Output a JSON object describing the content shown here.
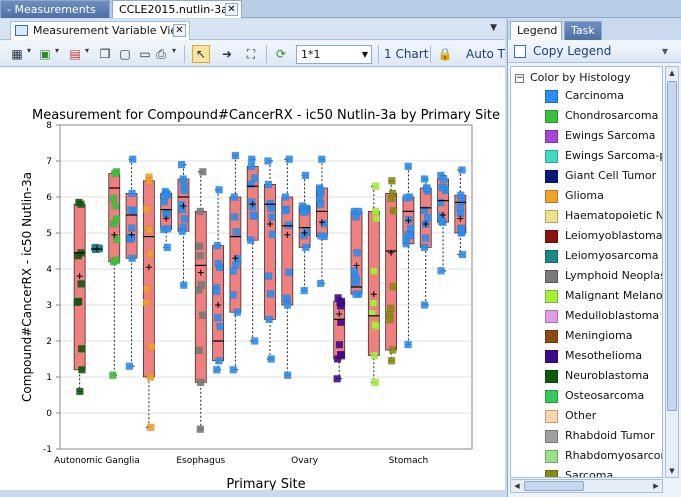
{
  "document_tabs": [
    {
      "label": "- Measurements",
      "active": false
    },
    {
      "label": "CCLE2015.nutlin-3a",
      "active": true
    }
  ],
  "subtab": {
    "label": "Measurement Variable View"
  },
  "toolbar": {
    "layout_value": "1*1",
    "chart_label": "1 Chart",
    "auto_label": "Auto T"
  },
  "right_tabs": [
    {
      "label": "Legend",
      "active": true
    },
    {
      "label": "Task",
      "active": false
    }
  ],
  "copy_legend": "Copy Legend",
  "legend": {
    "header": "Color by Histology",
    "items": [
      {
        "label": "Carcinoma",
        "color": "#2a8ff0"
      },
      {
        "label": "Chondrosarcoma",
        "color": "#3cbf3c"
      },
      {
        "label": "Ewings Sarcoma",
        "color": "#a347d6"
      },
      {
        "label": "Ewings Sarcoma-peri",
        "color": "#43d8c8"
      },
      {
        "label": "Giant Cell Tumor",
        "color": "#0a1a7a"
      },
      {
        "label": "Glioma",
        "color": "#f2a12a"
      },
      {
        "label": "Haematopoietic Neo",
        "color": "#efe08c"
      },
      {
        "label": "Leiomyoblastoma",
        "color": "#8a1212"
      },
      {
        "label": "Leiomyosarcoma",
        "color": "#1d8a8a"
      },
      {
        "label": "Lymphoid Neoplasm",
        "color": "#7a7a7a"
      },
      {
        "label": "Malignant Melanoma",
        "color": "#a8ef3a"
      },
      {
        "label": "Medulloblastoma",
        "color": "#e39be6"
      },
      {
        "label": "Meningioma",
        "color": "#8a4a12"
      },
      {
        "label": "Mesothelioma",
        "color": "#3f0a8a"
      },
      {
        "label": "Neuroblastoma",
        "color": "#0d5a0d"
      },
      {
        "label": "Osteosarcoma",
        "color": "#36c95c"
      },
      {
        "label": "Other",
        "color": "#f8d7a8"
      },
      {
        "label": "Rhabdoid Tumor",
        "color": "#a0a0a0"
      },
      {
        "label": "Rhabdomyosarcoma",
        "color": "#9ae08a"
      },
      {
        "label": "Sarcoma",
        "color": "#8a8a12"
      }
    ]
  },
  "chart_data": {
    "type": "box",
    "title": "Measurement for Compound#CancerRX - ic50 Nutlin-3a by Primary Site",
    "xlabel": "Primary Site",
    "ylabel": "Compound#CancerRX - ic50 Nutlin-3a",
    "ylim": [
      -1,
      8
    ],
    "yticks": [
      -1,
      0,
      1,
      2,
      3,
      4,
      5,
      6,
      7,
      8
    ],
    "category_labels": [
      "Autonomic Ganglia",
      "Esophagus",
      "Ovary",
      "Stomach"
    ],
    "box_color": "#f08080",
    "grid": true,
    "boxes": [
      {
        "min": 0.6,
        "q1": 1.2,
        "median": 4.45,
        "q3": 5.8,
        "max": 5.85,
        "mean": 3.8,
        "color": "#0d5a0d"
      },
      {
        "min": 4.55,
        "q1": 4.55,
        "median": 4.55,
        "q3": 4.58,
        "max": 4.6,
        "mean": 4.57,
        "color": "#1d8a8a"
      },
      {
        "min": 1.05,
        "q1": 4.2,
        "median": 6.25,
        "q3": 6.65,
        "max": 6.7,
        "mean": 4.95,
        "color": "#3cbf3c"
      },
      {
        "min": 1.3,
        "q1": 4.3,
        "median": 5.5,
        "q3": 6.1,
        "max": 7.05,
        "mean": 4.95,
        "color": "#2a8ff0"
      },
      {
        "min": -0.4,
        "q1": 1.0,
        "median": 4.9,
        "q3": 6.45,
        "max": 6.55,
        "mean": 4.05,
        "color": "#f2a12a"
      },
      {
        "min": 4.6,
        "q1": 5.1,
        "median": 5.65,
        "q3": 6.1,
        "max": 6.15,
        "mean": 5.4,
        "color": "#2a8ff0"
      },
      {
        "min": 3.55,
        "q1": 5.05,
        "median": 6.0,
        "q3": 6.5,
        "max": 6.9,
        "mean": 5.75,
        "color": "#2a8ff0"
      },
      {
        "min": -0.45,
        "q1": 0.85,
        "median": 4.1,
        "q3": 5.6,
        "max": 6.7,
        "mean": 3.9,
        "color": "#7a7a7a"
      },
      {
        "min": 1.2,
        "q1": 1.45,
        "median": 2.0,
        "q3": 4.65,
        "max": 6.2,
        "mean": 3.0,
        "color": "#2a8ff0"
      },
      {
        "min": 1.2,
        "q1": 2.8,
        "median": 4.9,
        "q3": 6.0,
        "max": 7.15,
        "mean": 4.3,
        "color": "#2a8ff0"
      },
      {
        "min": 2.0,
        "q1": 4.8,
        "median": 6.3,
        "q3": 6.85,
        "max": 7.05,
        "mean": 5.8,
        "color": "#2a8ff0"
      },
      {
        "min": 1.5,
        "q1": 2.6,
        "median": 5.8,
        "q3": 6.35,
        "max": 7.0,
        "mean": 5.25,
        "color": "#2a8ff0"
      },
      {
        "min": 1.05,
        "q1": 3.0,
        "median": 5.2,
        "q3": 6.0,
        "max": 7.05,
        "mean": 4.95,
        "color": "#2a8ff0"
      },
      {
        "min": 3.4,
        "q1": 4.6,
        "median": 5.15,
        "q3": 5.75,
        "max": 6.6,
        "mean": 5.0,
        "color": "#2a8ff0"
      },
      {
        "min": 3.6,
        "q1": 4.9,
        "median": 5.6,
        "q3": 6.25,
        "max": 7.05,
        "mean": 5.3,
        "color": "#2a8ff0"
      },
      {
        "min": 0.95,
        "q1": 1.5,
        "median": 2.6,
        "q3": 3.1,
        "max": 3.2,
        "mean": 2.75,
        "color": "#3f0a8a"
      },
      {
        "min": 3.3,
        "q1": 3.3,
        "median": 3.5,
        "q3": 5.6,
        "max": 5.6,
        "mean": 4.1,
        "color": "#2a8ff0"
      },
      {
        "min": 0.85,
        "q1": 1.6,
        "median": 2.7,
        "q3": 5.6,
        "max": 6.3,
        "mean": 3.3,
        "color": "#a8ef3a"
      },
      {
        "min": 1.45,
        "q1": 1.75,
        "median": 4.5,
        "q3": 6.1,
        "max": 6.45,
        "mean": 4.45,
        "color": "#8a8a12"
      },
      {
        "min": 1.9,
        "q1": 4.7,
        "median": 5.6,
        "q3": 6.0,
        "max": 6.85,
        "mean": 5.35,
        "color": "#2a8ff0"
      },
      {
        "min": 3.0,
        "q1": 4.6,
        "median": 5.7,
        "q3": 6.25,
        "max": 6.5,
        "mean": 5.25,
        "color": "#2a8ff0"
      },
      {
        "min": 3.95,
        "q1": 5.3,
        "median": 5.9,
        "q3": 6.5,
        "max": 6.6,
        "mean": 5.5,
        "color": "#2a8ff0"
      },
      {
        "min": 4.4,
        "q1": 5.0,
        "median": 5.85,
        "q3": 6.05,
        "max": 6.75,
        "mean": 5.4,
        "color": "#2a8ff0"
      }
    ]
  }
}
